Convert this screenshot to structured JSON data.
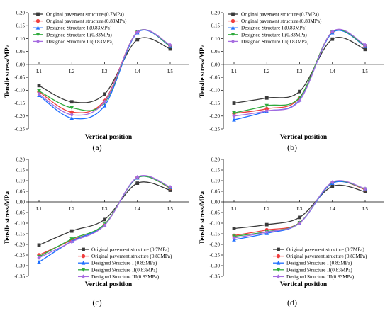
{
  "figure": {
    "panels": [
      "(a)",
      "(b)",
      "(c)",
      "(d)"
    ]
  },
  "series_colors": [
    "#3a3a3a",
    "#f03e3e",
    "#1e6fff",
    "#2eaa3c",
    "#a66ce0"
  ],
  "series_markers": [
    "square",
    "circle",
    "triangle-up",
    "triangle-down",
    "diamond"
  ],
  "chart_data": [
    {
      "type": "line",
      "panel_label": "(a)",
      "xlabel": "Vertical position",
      "ylabel": "Tensile stress/MPa",
      "categories": [
        "L1",
        "L2",
        "L3",
        "L4",
        "L5"
      ],
      "ylim": [
        -0.25,
        0.2
      ],
      "yticks": [
        "0.20",
        "0.15",
        "0.10",
        "0.05",
        "0.00",
        "-0.05",
        "-0.10",
        "-0.15",
        "-0.20",
        "-0.25"
      ],
      "legend_position": "top-left",
      "series": [
        {
          "name": "Original pavement structure (0.7MPa)",
          "values": [
            -0.082,
            -0.145,
            -0.115,
            0.096,
            0.06
          ]
        },
        {
          "name": "Original pavement structure (0.83MPa)",
          "values": [
            -0.106,
            -0.185,
            -0.14,
            0.125,
            0.072
          ]
        },
        {
          "name": "Designed Structure I (0.83MPa)",
          "values": [
            -0.12,
            -0.208,
            -0.16,
            0.123,
            0.07
          ]
        },
        {
          "name": "Designed Structure II(0.83MPa)",
          "values": [
            -0.103,
            -0.168,
            -0.148,
            0.126,
            0.071
          ]
        },
        {
          "name": "Designed Structure III(0.83MPa)",
          "values": [
            -0.115,
            -0.195,
            -0.145,
            0.125,
            0.075
          ]
        }
      ]
    },
    {
      "type": "line",
      "panel_label": "(b)",
      "xlabel": "Vertical position",
      "ylabel": "Tensile stress/MPa",
      "categories": [
        "L1",
        "L2",
        "L3",
        "L4",
        "L5"
      ],
      "ylim": [
        -0.25,
        0.2
      ],
      "yticks": [
        "0.20",
        "0.15",
        "0.10",
        "0.05",
        "0.00",
        "-0.05",
        "-0.10",
        "-0.15",
        "-0.20",
        "-0.25"
      ],
      "legend_position": "top-left",
      "series": [
        {
          "name": "Original pavement structure (0.7MPa)",
          "values": [
            -0.15,
            -0.13,
            -0.105,
            0.098,
            0.058
          ]
        },
        {
          "name": "Original pavement structure (0.83MPa)",
          "values": [
            -0.19,
            -0.172,
            -0.13,
            0.126,
            0.07
          ]
        },
        {
          "name": "Designed Structure I (0.83MPa)",
          "values": [
            -0.215,
            -0.182,
            -0.138,
            0.123,
            0.07
          ]
        },
        {
          "name": "Designed Structure II(0.83MPa)",
          "values": [
            -0.188,
            -0.16,
            -0.128,
            0.126,
            0.072
          ]
        },
        {
          "name": "Designed Structure III(0.83MPa)",
          "values": [
            -0.2,
            -0.18,
            -0.14,
            0.127,
            0.075
          ]
        }
      ]
    },
    {
      "type": "line",
      "panel_label": "(c)",
      "xlabel": "Vertical position",
      "ylabel": "Tensile stress/MPa",
      "categories": [
        "L1",
        "L2",
        "L3",
        "L4",
        "L5"
      ],
      "ylim": [
        -0.35,
        0.2
      ],
      "yticks": [
        "0.20",
        "0.15",
        "0.10",
        "0.05",
        "0.00",
        "-0.05",
        "-0.10",
        "-0.15",
        "-0.20",
        "-0.25",
        "-0.30",
        "-0.35"
      ],
      "legend_position": "bottom-right",
      "series": [
        {
          "name": "Original pavement structure (0.7MPa)",
          "values": [
            -0.203,
            -0.137,
            -0.083,
            0.088,
            0.055
          ]
        },
        {
          "name": "Original pavement structure (0.83MPa)",
          "values": [
            -0.25,
            -0.18,
            -0.108,
            0.115,
            0.065
          ]
        },
        {
          "name": "Designed Structure I (0.83MPa)",
          "values": [
            -0.283,
            -0.185,
            -0.108,
            0.113,
            0.068
          ]
        },
        {
          "name": "Designed Structure II(0.83MPa)",
          "values": [
            -0.258,
            -0.175,
            -0.105,
            0.114,
            0.066
          ]
        },
        {
          "name": "Designed Structure III(0.83MPa)",
          "values": [
            -0.263,
            -0.188,
            -0.11,
            0.117,
            0.07
          ]
        }
      ]
    },
    {
      "type": "line",
      "panel_label": "(d)",
      "xlabel": "Vertical position",
      "ylabel": "Tensile stress/MPa",
      "categories": [
        "L1",
        "L2",
        "L3",
        "L4",
        "L5"
      ],
      "ylim": [
        -0.35,
        0.2
      ],
      "yticks": [
        "0.20",
        "0.15",
        "0.10",
        "0.05",
        "0.00",
        "-0.05",
        "-0.10",
        "-0.15",
        "-0.20",
        "-0.25",
        "-0.30",
        "-0.35"
      ],
      "legend_position": "bottom-right",
      "series": [
        {
          "name": "Original pavement structure (0.7MPa)",
          "values": [
            -0.125,
            -0.107,
            -0.073,
            0.073,
            0.048
          ]
        },
        {
          "name": "Original pavement structure (0.83MPa)",
          "values": [
            -0.158,
            -0.132,
            -0.098,
            0.09,
            0.058
          ]
        },
        {
          "name": "Designed Structure I (0.83MPa)",
          "values": [
            -0.178,
            -0.148,
            -0.1,
            0.088,
            0.062
          ]
        },
        {
          "name": "Designed Structure II(0.83MPa)",
          "values": [
            -0.162,
            -0.14,
            -0.098,
            0.092,
            0.06
          ]
        },
        {
          "name": "Designed Structure III(0.83MPa)",
          "values": [
            -0.17,
            -0.142,
            -0.1,
            0.093,
            0.062
          ]
        }
      ]
    }
  ]
}
